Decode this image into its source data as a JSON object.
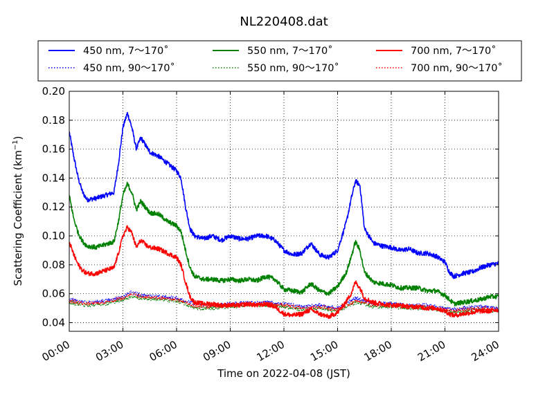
{
  "chart_data": {
    "type": "line",
    "title": "NL220408.dat",
    "xlabel": "Time on 2022-04-08 (JST)",
    "ylabel_main": "Scattering Coefficient (km",
    "ylabel_sup": "−1",
    "ylabel_close": ")",
    "xlim_hours": [
      0,
      24
    ],
    "ylim": [
      0.034,
      0.2
    ],
    "x_tick_labels": [
      "00:00",
      "03:00",
      "06:00",
      "09:00",
      "12:00",
      "15:00",
      "18:00",
      "21:00",
      "24:00"
    ],
    "y_ticks": [
      0.04,
      0.06,
      0.08,
      0.1,
      0.12,
      0.14,
      0.16,
      0.18,
      0.2
    ],
    "y_tick_labels": [
      "0.04",
      "0.06",
      "0.08",
      "0.10",
      "0.12",
      "0.14",
      "0.16",
      "0.18",
      "0.20"
    ],
    "grid": true,
    "grid_style": "dotted",
    "legend_placement": "top, above plot, 3 columns",
    "x_unit": "hours after 00:00 JST",
    "series": [
      {
        "name": "450 nm, 7～170˚",
        "color": "#0000ff",
        "style": "solid",
        "x": [
          0,
          0.25,
          0.5,
          0.75,
          1,
          1.5,
          2,
          2.5,
          2.75,
          3,
          3.25,
          3.5,
          3.75,
          4,
          4.25,
          4.5,
          5,
          5.5,
          6,
          6.25,
          6.5,
          6.75,
          7,
          7.5,
          8,
          8.5,
          9,
          9.5,
          10,
          10.5,
          11,
          11.5,
          12,
          12.5,
          13,
          13.5,
          14,
          14.5,
          15,
          15.5,
          15.75,
          16,
          16.25,
          16.5,
          17,
          17.5,
          18,
          18.5,
          19,
          19.5,
          20,
          20.5,
          21,
          21.25,
          21.5,
          22,
          22.5,
          23,
          23.5,
          24
        ],
        "values": [
          0.172,
          0.155,
          0.14,
          0.13,
          0.125,
          0.126,
          0.128,
          0.13,
          0.15,
          0.175,
          0.185,
          0.175,
          0.16,
          0.168,
          0.163,
          0.158,
          0.155,
          0.15,
          0.145,
          0.14,
          0.12,
          0.105,
          0.1,
          0.098,
          0.1,
          0.097,
          0.1,
          0.098,
          0.098,
          0.1,
          0.1,
          0.097,
          0.09,
          0.087,
          0.088,
          0.095,
          0.087,
          0.085,
          0.09,
          0.11,
          0.125,
          0.138,
          0.135,
          0.105,
          0.095,
          0.093,
          0.092,
          0.09,
          0.091,
          0.088,
          0.088,
          0.086,
          0.082,
          0.075,
          0.072,
          0.074,
          0.075,
          0.078,
          0.08,
          0.081
        ]
      },
      {
        "name": "450 nm, 90～170˚",
        "color": "#0000ff",
        "style": "dotted",
        "x": [
          0,
          1,
          2,
          3,
          3.5,
          4,
          5,
          6,
          6.5,
          7,
          8,
          9,
          10,
          11,
          12,
          13,
          14,
          15,
          16,
          16.5,
          17,
          18,
          19,
          20,
          21,
          21.5,
          22,
          23,
          24
        ],
        "values": [
          0.056,
          0.054,
          0.055,
          0.058,
          0.061,
          0.059,
          0.058,
          0.057,
          0.055,
          0.053,
          0.052,
          0.053,
          0.054,
          0.054,
          0.053,
          0.051,
          0.052,
          0.05,
          0.057,
          0.055,
          0.053,
          0.053,
          0.052,
          0.052,
          0.05,
          0.049,
          0.05,
          0.051,
          0.05
        ]
      },
      {
        "name": "550 nm, 7～170˚",
        "color": "#008000",
        "style": "solid",
        "x": [
          0,
          0.25,
          0.5,
          0.75,
          1,
          1.5,
          2,
          2.5,
          2.75,
          3,
          3.25,
          3.5,
          3.75,
          4,
          4.25,
          4.5,
          5,
          5.5,
          6,
          6.25,
          6.5,
          6.75,
          7,
          7.5,
          8,
          8.5,
          9,
          9.5,
          10,
          10.5,
          11,
          11.5,
          12,
          12.5,
          13,
          13.5,
          14,
          14.5,
          15,
          15.5,
          15.75,
          16,
          16.25,
          16.5,
          17,
          17.5,
          18,
          18.5,
          19,
          19.5,
          20,
          20.5,
          21,
          21.25,
          21.5,
          22,
          22.5,
          23,
          23.5,
          24
        ],
        "values": [
          0.128,
          0.112,
          0.102,
          0.096,
          0.093,
          0.092,
          0.094,
          0.096,
          0.11,
          0.128,
          0.136,
          0.13,
          0.118,
          0.124,
          0.12,
          0.116,
          0.115,
          0.11,
          0.107,
          0.103,
          0.09,
          0.078,
          0.072,
          0.07,
          0.07,
          0.069,
          0.07,
          0.069,
          0.07,
          0.069,
          0.072,
          0.07,
          0.063,
          0.062,
          0.061,
          0.067,
          0.062,
          0.06,
          0.065,
          0.075,
          0.085,
          0.096,
          0.09,
          0.075,
          0.068,
          0.067,
          0.066,
          0.064,
          0.064,
          0.064,
          0.062,
          0.062,
          0.059,
          0.056,
          0.053,
          0.054,
          0.055,
          0.056,
          0.058,
          0.058
        ]
      },
      {
        "name": "550 nm, 90～170˚",
        "color": "#008000",
        "style": "dotted",
        "x": [
          0,
          1,
          2,
          3,
          3.5,
          4,
          5,
          6,
          6.5,
          7,
          8,
          9,
          10,
          11,
          12,
          13,
          14,
          15,
          16,
          16.5,
          17,
          18,
          19,
          20,
          21,
          21.5,
          22,
          23,
          24
        ],
        "values": [
          0.054,
          0.052,
          0.053,
          0.056,
          0.058,
          0.057,
          0.056,
          0.055,
          0.053,
          0.05,
          0.05,
          0.051,
          0.052,
          0.052,
          0.051,
          0.049,
          0.05,
          0.048,
          0.054,
          0.053,
          0.051,
          0.051,
          0.05,
          0.05,
          0.048,
          0.047,
          0.048,
          0.049,
          0.048
        ]
      },
      {
        "name": "700 nm, 7～170˚",
        "color": "#ff0000",
        "style": "solid",
        "x": [
          0,
          0.25,
          0.5,
          0.75,
          1,
          1.5,
          2,
          2.5,
          2.75,
          3,
          3.25,
          3.5,
          3.75,
          4,
          4.25,
          4.5,
          5,
          5.5,
          6,
          6.25,
          6.5,
          6.75,
          7,
          7.5,
          8,
          8.5,
          9,
          9.5,
          10,
          10.5,
          11,
          11.5,
          12,
          12.5,
          13,
          13.5,
          14,
          14.5,
          15,
          15.5,
          15.75,
          16,
          16.25,
          16.5,
          17,
          17.5,
          18,
          18.5,
          19,
          19.5,
          20,
          20.5,
          21,
          21.25,
          21.5,
          22,
          22.5,
          23,
          23.5,
          24
        ],
        "values": [
          0.096,
          0.087,
          0.08,
          0.076,
          0.074,
          0.074,
          0.076,
          0.078,
          0.088,
          0.1,
          0.106,
          0.102,
          0.092,
          0.097,
          0.094,
          0.092,
          0.091,
          0.088,
          0.085,
          0.08,
          0.068,
          0.058,
          0.054,
          0.053,
          0.053,
          0.052,
          0.052,
          0.052,
          0.053,
          0.052,
          0.053,
          0.051,
          0.046,
          0.045,
          0.046,
          0.049,
          0.046,
          0.044,
          0.047,
          0.055,
          0.06,
          0.068,
          0.064,
          0.057,
          0.054,
          0.053,
          0.052,
          0.052,
          0.051,
          0.051,
          0.05,
          0.05,
          0.048,
          0.046,
          0.045,
          0.046,
          0.047,
          0.048,
          0.048,
          0.049
        ]
      },
      {
        "name": "700 nm, 90～170˚",
        "color": "#ff0000",
        "style": "dotted",
        "x": [
          0,
          1,
          2,
          3,
          3.5,
          4,
          5,
          6,
          6.5,
          7,
          8,
          9,
          10,
          11,
          12,
          13,
          14,
          15,
          16,
          16.5,
          17,
          18,
          19,
          20,
          21,
          21.5,
          22,
          23,
          24
        ],
        "values": [
          0.055,
          0.053,
          0.054,
          0.057,
          0.06,
          0.058,
          0.057,
          0.056,
          0.054,
          0.051,
          0.051,
          0.052,
          0.053,
          0.053,
          0.052,
          0.05,
          0.051,
          0.049,
          0.055,
          0.054,
          0.052,
          0.052,
          0.051,
          0.051,
          0.049,
          0.048,
          0.049,
          0.05,
          0.049
        ]
      }
    ]
  }
}
